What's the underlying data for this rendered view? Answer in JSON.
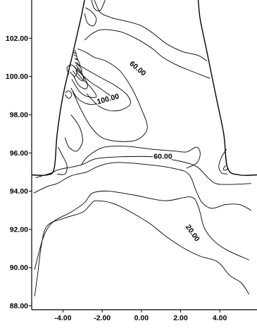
{
  "chart_data": {
    "type": "contour",
    "title": "",
    "xlabel": "",
    "ylabel": "",
    "xlim": [
      -5.6,
      5.9
    ],
    "ylim": [
      87.8,
      104.0
    ],
    "x_ticks": [
      {
        "value": -4,
        "label": "-4.00"
      },
      {
        "value": -2,
        "label": "-2.00"
      },
      {
        "value": 0,
        "label": "0.00"
      },
      {
        "value": 2,
        "label": "2.00"
      },
      {
        "value": 4,
        "label": "4.00"
      }
    ],
    "y_ticks": [
      {
        "value": 88,
        "label": "88.00"
      },
      {
        "value": 90,
        "label": "90.00"
      },
      {
        "value": 92,
        "label": "92.00"
      },
      {
        "value": 94,
        "label": "94.00"
      },
      {
        "value": 96,
        "label": "96.00"
      },
      {
        "value": 98,
        "label": "98.00"
      },
      {
        "value": 100,
        "label": "100.00"
      },
      {
        "value": 102,
        "label": "102.00"
      }
    ],
    "contour_labels": [
      {
        "text": "60.00",
        "x": -0.2,
        "y": 100.4,
        "angle": 40
      },
      {
        "text": "100.00",
        "x": -1.7,
        "y": 98.8,
        "angle": -15
      },
      {
        "text": "60.00",
        "x": 1.1,
        "y": 95.8,
        "angle": 0
      },
      {
        "text": "20.00",
        "x": 2.6,
        "y": 91.8,
        "angle": 55
      }
    ],
    "boundary": [
      [
        [
          -5.6,
          94.85
        ],
        [
          -4.8,
          94.85
        ],
        [
          -4.45,
          95.2
        ],
        [
          -4.3,
          97.0
        ],
        [
          -4.0,
          99.0
        ],
        [
          -3.5,
          101.2
        ],
        [
          -3.1,
          103.0
        ],
        [
          -2.9,
          104.0
        ]
      ],
      [
        [
          5.9,
          94.85
        ],
        [
          5.0,
          94.85
        ],
        [
          4.4,
          95.2
        ],
        [
          4.2,
          97.0
        ],
        [
          3.8,
          99.0
        ],
        [
          3.3,
          101.5
        ],
        [
          3.0,
          103.0
        ],
        [
          2.9,
          104.0
        ]
      ]
    ],
    "contours": [
      [
        [
          -5.45,
          88.5
        ],
        [
          -5.3,
          89.6
        ],
        [
          -5.1,
          91.2
        ],
        [
          -4.8,
          92.2
        ],
        [
          -3.9,
          92.6
        ],
        [
          -3.0,
          92.9
        ],
        [
          -2.6,
          93.3
        ],
        [
          -2.3,
          93.5
        ],
        [
          -1.3,
          93.3
        ],
        [
          0.3,
          92.4
        ],
        [
          1.3,
          91.6
        ],
        [
          2.2,
          91.0
        ],
        [
          3.0,
          90.6
        ],
        [
          3.9,
          90.3
        ],
        [
          4.5,
          89.6
        ],
        [
          5.1,
          89.2
        ],
        [
          5.5,
          88.6
        ]
      ],
      [
        [
          -5.45,
          89.9
        ],
        [
          -5.0,
          91.6
        ],
        [
          -4.5,
          92.4
        ],
        [
          -3.6,
          92.9
        ],
        [
          -2.9,
          93.4
        ],
        [
          -2.5,
          93.9
        ],
        [
          -1.7,
          94.0
        ],
        [
          -0.4,
          93.8
        ],
        [
          1.2,
          93.5
        ],
        [
          2.5,
          93.7
        ],
        [
          2.9,
          93.2
        ],
        [
          3.2,
          92.1
        ],
        [
          3.7,
          91.4
        ],
        [
          4.4,
          90.9
        ],
        [
          5.5,
          90.4
        ]
      ],
      [
        [
          -5.5,
          93.9
        ],
        [
          -4.8,
          94.25
        ],
        [
          -4.3,
          94.4
        ],
        [
          -3.6,
          94.8
        ],
        [
          -2.8,
          95.0
        ],
        [
          -2.2,
          95.3
        ],
        [
          -1.3,
          95.5
        ],
        [
          0.2,
          95.4
        ],
        [
          1.6,
          95.2
        ],
        [
          2.4,
          94.9
        ],
        [
          2.8,
          94.0
        ],
        [
          3.1,
          93.4
        ],
        [
          3.6,
          93.1
        ],
        [
          4.3,
          93.3
        ],
        [
          5.0,
          93.3
        ],
        [
          5.6,
          93.0
        ]
      ],
      [
        [
          -5.4,
          94.7
        ],
        [
          -4.6,
          94.95
        ],
        [
          -4.3,
          95.1
        ],
        [
          -3.9,
          95.2
        ],
        [
          -3.6,
          95.25
        ],
        [
          -3.0,
          95.4
        ],
        [
          -2.3,
          95.7
        ],
        [
          -1.0,
          95.8
        ],
        [
          0.5,
          95.8
        ],
        [
          1.8,
          95.6
        ],
        [
          2.8,
          95.3
        ],
        [
          3.4,
          94.7
        ],
        [
          3.8,
          94.4
        ],
        [
          4.4,
          94.35
        ],
        [
          5.6,
          94.4
        ]
      ],
      [
        [
          -3.05,
          95.4
        ],
        [
          -2.85,
          95.7
        ],
        [
          -2.5,
          96.0
        ],
        [
          -1.9,
          96.3
        ],
        [
          -0.8,
          96.35
        ],
        [
          0.5,
          96.2
        ],
        [
          1.7,
          96.1
        ],
        [
          2.3,
          96.05
        ],
        [
          2.8,
          96.3
        ],
        [
          3.0,
          96.0
        ],
        [
          2.85,
          95.5
        ],
        [
          2.3,
          95.2
        ]
      ],
      [
        [
          -4.25,
          96.3
        ],
        [
          -4.05,
          95.9
        ],
        [
          -3.8,
          95.35
        ],
        [
          -3.9,
          94.9
        ],
        [
          -4.3,
          94.9
        ]
      ],
      [
        [
          4.35,
          96.2
        ],
        [
          4.1,
          95.8
        ],
        [
          3.95,
          95.3
        ],
        [
          4.1,
          94.95
        ],
        [
          4.4,
          94.9
        ]
      ],
      [
        [
          4.3,
          95.35
        ],
        [
          4.18,
          95.15
        ],
        [
          4.3,
          95.1
        ],
        [
          4.45,
          95.2
        ]
      ],
      [
        [
          -3.9,
          96.8
        ],
        [
          -3.7,
          96.3
        ],
        [
          -3.3,
          96.1
        ],
        [
          -3.0,
          96.6
        ],
        [
          -3.1,
          97.2
        ],
        [
          -3.3,
          97.6
        ],
        [
          -3.6,
          98.0
        ]
      ],
      [
        [
          -3.5,
          99.2
        ],
        [
          -3.1,
          98.3
        ],
        [
          -2.6,
          97.4
        ],
        [
          -2.0,
          96.8
        ],
        [
          -1.1,
          96.6
        ],
        [
          -0.2,
          96.7
        ],
        [
          0.3,
          97.3
        ],
        [
          0.0,
          98.3
        ],
        [
          -0.5,
          99.4
        ],
        [
          -1.1,
          100.3
        ],
        [
          -1.8,
          100.8
        ],
        [
          -2.4,
          101.0
        ],
        [
          -2.8,
          101.25
        ],
        [
          -3.25,
          101.45
        ]
      ],
      [
        [
          -2.8,
          99.1
        ],
        [
          -2.1,
          98.4
        ],
        [
          -1.3,
          98.2
        ],
        [
          -0.6,
          98.5
        ],
        [
          -0.7,
          99.0
        ],
        [
          -1.3,
          99.5
        ],
        [
          -2.0,
          99.9
        ],
        [
          -2.7,
          100.3
        ],
        [
          -3.2,
          100.6
        ]
      ],
      [
        [
          -2.9,
          101.9
        ],
        [
          -2.5,
          102.25
        ],
        [
          -2.0,
          102.45
        ],
        [
          -1.1,
          102.35
        ],
        [
          -0.3,
          102.0
        ],
        [
          0.5,
          101.5
        ],
        [
          1.1,
          101.0
        ],
        [
          1.8,
          100.6
        ],
        [
          2.5,
          100.3
        ],
        [
          3.5,
          99.9
        ]
      ],
      [
        [
          -1.5,
          103.05
        ],
        [
          -0.8,
          102.9
        ],
        [
          0.0,
          102.65
        ],
        [
          0.6,
          102.25
        ],
        [
          1.3,
          101.7
        ],
        [
          2.1,
          101.3
        ],
        [
          2.9,
          101.1
        ],
        [
          3.35,
          100.8
        ]
      ],
      [
        [
          -2.4,
          104.0
        ],
        [
          -2.1,
          103.35
        ],
        [
          -1.6,
          103.1
        ],
        [
          -1.45,
          103.05
        ]
      ],
      [
        [
          -2.55,
          104.0
        ],
        [
          -2.4,
          103.55
        ],
        [
          -2.1,
          103.45
        ],
        [
          -1.85,
          104.0
        ]
      ],
      [
        [
          -2.9,
          103.3
        ],
        [
          -2.75,
          102.8
        ],
        [
          -2.45,
          102.65
        ],
        [
          -2.3,
          103.0
        ],
        [
          -2.5,
          103.35
        ],
        [
          -2.85,
          103.6
        ]
      ],
      [
        [
          -3.6,
          99.4
        ],
        [
          -3.25,
          98.85
        ],
        [
          -2.7,
          98.55
        ],
        [
          -2.1,
          98.6
        ],
        [
          -1.5,
          98.85
        ],
        [
          -2.0,
          99.3
        ],
        [
          -2.6,
          99.7
        ],
        [
          -3.1,
          100.15
        ]
      ],
      [
        [
          -3.55,
          99.85
        ],
        [
          -3.15,
          99.2
        ],
        [
          -2.75,
          98.95
        ],
        [
          -2.3,
          98.95
        ],
        [
          -2.6,
          99.45
        ],
        [
          -3.05,
          99.9
        ],
        [
          -3.35,
          100.3
        ]
      ],
      [
        [
          -3.5,
          100.1
        ],
        [
          -3.2,
          99.55
        ],
        [
          -2.85,
          99.35
        ],
        [
          -2.75,
          99.6
        ],
        [
          -3.0,
          100.05
        ],
        [
          -3.3,
          100.45
        ]
      ],
      [
        [
          -3.5,
          100.3
        ],
        [
          -3.15,
          99.85
        ],
        [
          -2.95,
          99.8
        ],
        [
          -3.05,
          100.2
        ],
        [
          -3.35,
          100.6
        ]
      ],
      [
        [
          -3.45,
          100.55
        ],
        [
          -3.15,
          100.2
        ],
        [
          -3.05,
          100.35
        ],
        [
          -3.3,
          100.75
        ]
      ],
      [
        [
          -3.4,
          100.75
        ],
        [
          -3.15,
          100.55
        ],
        [
          -3.2,
          100.8
        ],
        [
          -3.35,
          100.95
        ]
      ],
      [
        [
          -3.4,
          100.95
        ],
        [
          -3.25,
          100.85
        ],
        [
          -3.3,
          101.05
        ]
      ],
      [
        [
          -3.45,
          101.15
        ],
        [
          -3.3,
          101.05
        ],
        [
          -3.35,
          101.25
        ]
      ],
      [
        [
          -3.5,
          101.3
        ],
        [
          -3.35,
          101.2
        ],
        [
          -3.4,
          101.4
        ]
      ],
      [
        [
          -3.65,
          100.25
        ],
        [
          -3.4,
          100.0
        ],
        [
          -3.3,
          100.3
        ],
        [
          -3.55,
          100.6
        ],
        [
          -3.8,
          100.45
        ],
        [
          -3.7,
          100.1
        ]
      ],
      [
        [
          -3.9,
          99.05
        ],
        [
          -3.7,
          98.85
        ],
        [
          -3.55,
          99.05
        ],
        [
          -3.7,
          99.25
        ],
        [
          -3.9,
          99.15
        ]
      ]
    ]
  }
}
